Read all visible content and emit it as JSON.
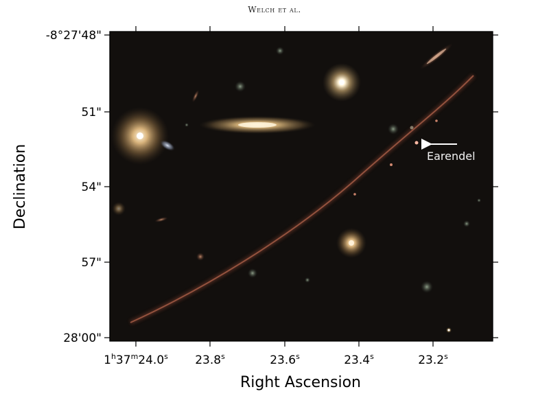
{
  "header": {
    "running_head": "Welch et al."
  },
  "figure": {
    "x_axis": {
      "label": "Right Ascension",
      "ticks": [
        {
          "prefix": "1",
          "h": "h",
          "mid": "37",
          "m": "m",
          "main": "24.0",
          "s": "s"
        },
        {
          "main": "23.8",
          "s": "s"
        },
        {
          "main": "23.6",
          "s": "s"
        },
        {
          "main": "23.4",
          "s": "s"
        },
        {
          "main": "23.2",
          "s": "s"
        }
      ]
    },
    "y_axis": {
      "label": "Declination",
      "ticks": [
        "-8°27'48\"",
        "51\"",
        "54\"",
        "57\"",
        "28'00\""
      ]
    },
    "annotation": {
      "label": "Earendel"
    }
  }
}
